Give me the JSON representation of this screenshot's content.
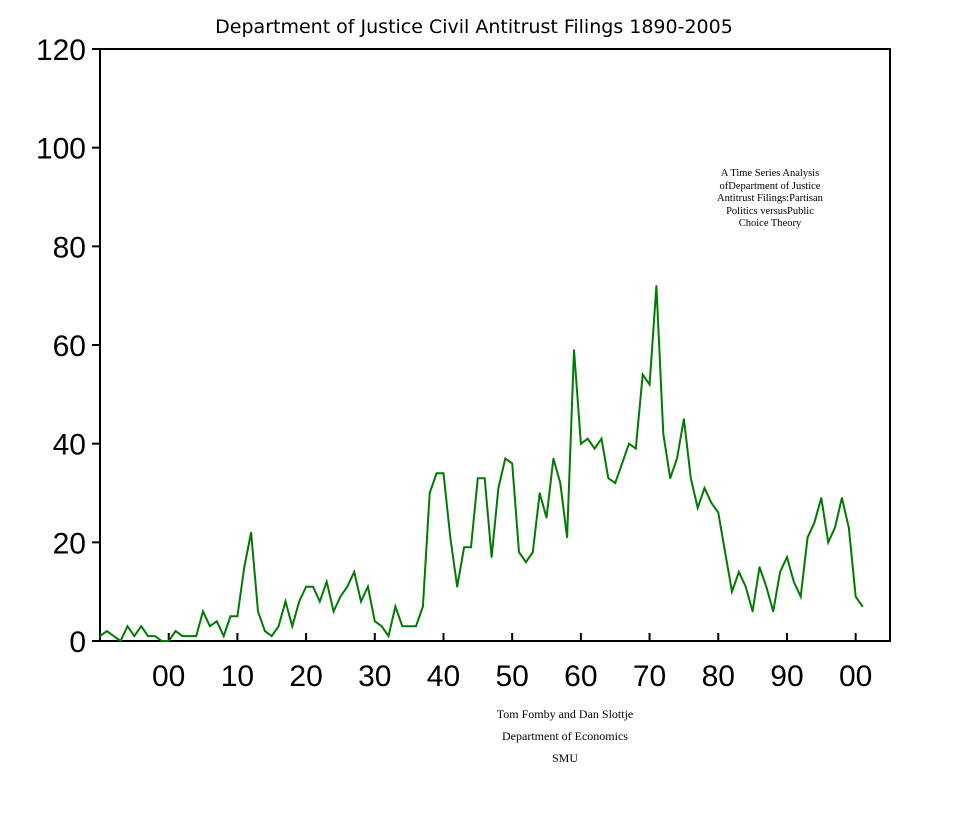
{
  "chart_data": {
    "type": "line",
    "title": "Department of Justice Civil Antitrust Filings 1890-2005",
    "xlabel": "",
    "ylabel": "",
    "xlim": [
      1890,
      2005
    ],
    "ylim": [
      0,
      120
    ],
    "grid": false,
    "yticks": [
      "0",
      "20",
      "40",
      "60",
      "80",
      "100",
      "120"
    ],
    "xticks": [
      {
        "year": 1900,
        "label": "00"
      },
      {
        "year": 1910,
        "label": "10"
      },
      {
        "year": 1920,
        "label": "20"
      },
      {
        "year": 1930,
        "label": "30"
      },
      {
        "year": 1940,
        "label": "40"
      },
      {
        "year": 1950,
        "label": "50"
      },
      {
        "year": 1960,
        "label": "60"
      },
      {
        "year": 1970,
        "label": "70"
      },
      {
        "year": 1980,
        "label": "80"
      },
      {
        "year": 1990,
        "label": "90"
      },
      {
        "year": 2000,
        "label": "00"
      }
    ],
    "line_color": "#007a00",
    "series": [
      {
        "name": "Civil Antitrust Filings",
        "start_year": 1890,
        "values": [
          1,
          2,
          1,
          0,
          3,
          1,
          3,
          1,
          1,
          0,
          0,
          2,
          1,
          1,
          1,
          6,
          3,
          4,
          1,
          5,
          5,
          15,
          22,
          6,
          2,
          1,
          3,
          8,
          3,
          8,
          11,
          11,
          8,
          12,
          6,
          9,
          11,
          14,
          8,
          11,
          4,
          3,
          1,
          7,
          3,
          3,
          3,
          7,
          30,
          34,
          34,
          21,
          11,
          19,
          19,
          33,
          33,
          17,
          31,
          37,
          36,
          18,
          16,
          18,
          30,
          25,
          37,
          32,
          21,
          59,
          40,
          41,
          39,
          41,
          33,
          32,
          36,
          40,
          39,
          54,
          52,
          72,
          42,
          33,
          37,
          45,
          33,
          27,
          31,
          28,
          26,
          18,
          10,
          14,
          11,
          6,
          15,
          11,
          6,
          14,
          17,
          12,
          9,
          21,
          24,
          29,
          20,
          23,
          29,
          23,
          9,
          7
        ]
      }
    ]
  },
  "annotation": {
    "lines": [
      "A Time Series Analysis",
      "ofDepartment of Justice",
      "Antitrust Filings:Partisan",
      "Politics versusPublic",
      "Choice Theory"
    ]
  },
  "credits": {
    "lines": [
      "Tom Fomby and Dan Slottje",
      "Department of Economics",
      "SMU"
    ]
  }
}
